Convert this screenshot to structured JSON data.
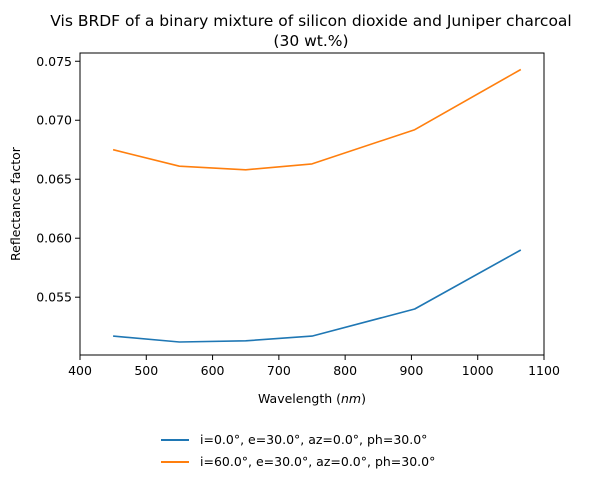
{
  "chart_data": {
    "type": "line",
    "title": "Vis BRDF of a binary mixture of silicon dioxide and Juniper charcoal",
    "subtitle": "(30 wt.%)",
    "xlabel": "Wavelength (",
    "xlabel_unit": "nm",
    "xlabel_close": ")",
    "ylabel": "Reflectance factor",
    "xlim": [
      400,
      1100
    ],
    "ylim": [
      0.0501,
      0.0757
    ],
    "xticks": [
      400,
      500,
      600,
      700,
      800,
      900,
      1000,
      1100
    ],
    "yticks": [
      0.055,
      0.06,
      0.065,
      0.07,
      0.075
    ],
    "ytick_labels": [
      "0.055",
      "0.060",
      "0.065",
      "0.070",
      "0.075"
    ],
    "grid": false,
    "legend_placement": "below",
    "series": [
      {
        "name": "i=0.0°, e=30.0°, az=0.0°, ph=30.0°",
        "color": "#1f77b4",
        "x": [
          450,
          550,
          650,
          750,
          905,
          1065
        ],
        "y": [
          0.0517,
          0.0512,
          0.0513,
          0.0517,
          0.054,
          0.059
        ]
      },
      {
        "name": "i=60.0°, e=30.0°, az=0.0°, ph=30.0°",
        "color": "#ff7f0e",
        "x": [
          450,
          550,
          650,
          750,
          905,
          1065
        ],
        "y": [
          0.0675,
          0.0661,
          0.0658,
          0.0663,
          0.0692,
          0.0743
        ]
      }
    ]
  }
}
